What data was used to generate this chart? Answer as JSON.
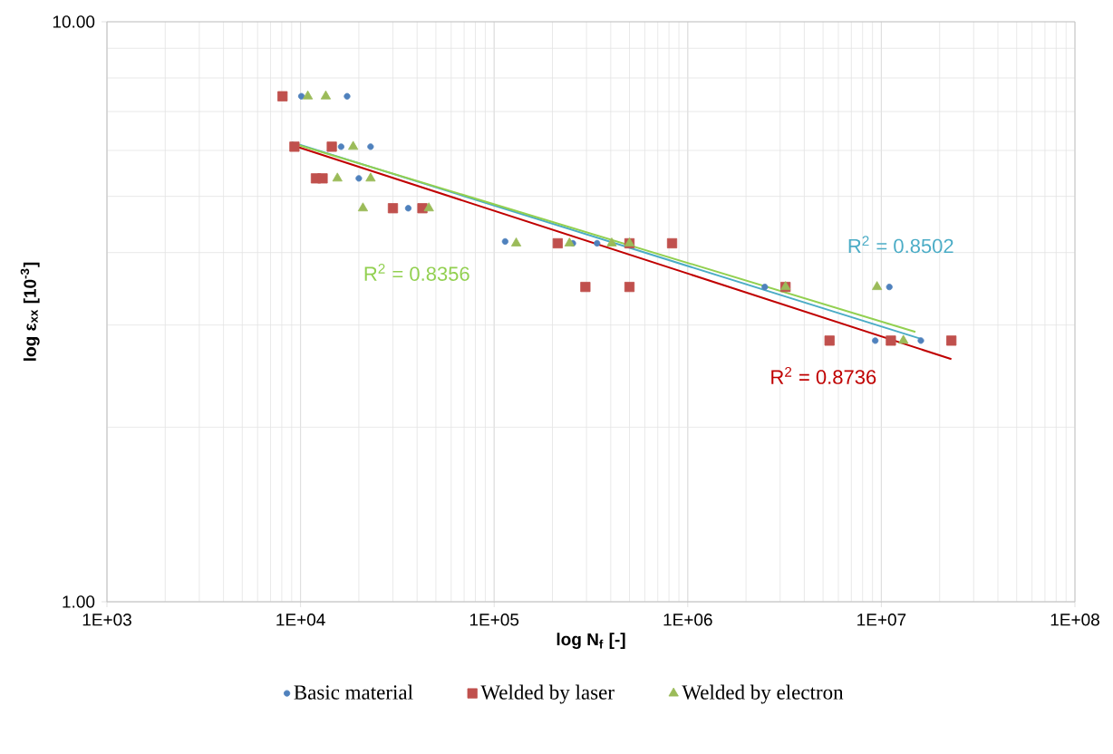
{
  "chart_data": {
    "type": "scatter",
    "xlabel": "log N$_{f}$ [-]",
    "ylabel": "log ε$_{xx}$ [10$^{-3}$]",
    "log": "xy",
    "grid": true,
    "legend": "bottom",
    "xlim": [
      1000,
      100000000
    ],
    "ylim": [
      1,
      10
    ],
    "xticks": [
      {
        "value": 1000,
        "label": "1E+03"
      },
      {
        "value": 10000,
        "label": "1E+04"
      },
      {
        "value": 100000,
        "label": "1E+05"
      },
      {
        "value": 1000000,
        "label": "1E+06"
      },
      {
        "value": 10000000,
        "label": "1E+07"
      },
      {
        "value": 100000000,
        "label": "1E+08"
      }
    ],
    "yticks": [
      {
        "value": 1,
        "label": "1.00"
      },
      {
        "value": 10,
        "label": "10.00"
      }
    ],
    "series": [
      {
        "name": "Basic material",
        "color": "#4f81bd",
        "marker": "circle",
        "x": [
          10100,
          17400,
          16200,
          23000,
          20000,
          36000,
          114000,
          255000,
          340000,
          2500000,
          11000000,
          9300000,
          16000000
        ],
        "values": [
          7.44,
          7.44,
          6.09,
          6.09,
          5.37,
          4.77,
          4.18,
          4.15,
          4.15,
          3.49,
          3.49,
          2.82,
          2.82
        ]
      },
      {
        "name": "Welded by laser",
        "color": "#c0504d",
        "marker": "square",
        "x": [
          8070,
          9300,
          14500,
          12000,
          13000,
          30000,
          42600,
          213000,
          500000,
          830000,
          296000,
          500000,
          3200000,
          5400000,
          11200000,
          23000000
        ],
        "values": [
          7.44,
          6.09,
          6.09,
          5.37,
          5.37,
          4.77,
          4.77,
          4.15,
          4.15,
          4.15,
          3.49,
          3.49,
          3.49,
          2.82,
          2.82,
          2.82
        ]
      },
      {
        "name": "Welded by electron",
        "color": "#9bbb59",
        "marker": "triangle",
        "x": [
          10900,
          13500,
          18700,
          15500,
          23000,
          21000,
          46000,
          130000,
          245000,
          405000,
          500000,
          3200000,
          9500000,
          13000000
        ],
        "values": [
          7.44,
          7.44,
          6.09,
          5.37,
          5.37,
          4.77,
          4.77,
          4.15,
          4.15,
          4.15,
          4.15,
          3.49,
          3.49,
          2.82
        ]
      },
      {
        "type": "line",
        "color": "#4bacc6",
        "marker": "none",
        "x": [
          9000,
          16000000
        ],
        "values": [
          6.2,
          2.84
        ]
      },
      {
        "type": "line",
        "color": "#c00000",
        "marker": "none",
        "x": [
          9000,
          23000000
        ],
        "values": [
          6.13,
          2.62
        ]
      },
      {
        "type": "line",
        "color": "#92d050",
        "marker": "none",
        "x": [
          9000,
          15000000
        ],
        "values": [
          6.18,
          2.92
        ]
      }
    ],
    "annotations": [
      "R$^{2}$ = 0.8502",
      "R$^{2}$ = 0.8736",
      "R$^{2}$ = 0.8356"
    ]
  }
}
